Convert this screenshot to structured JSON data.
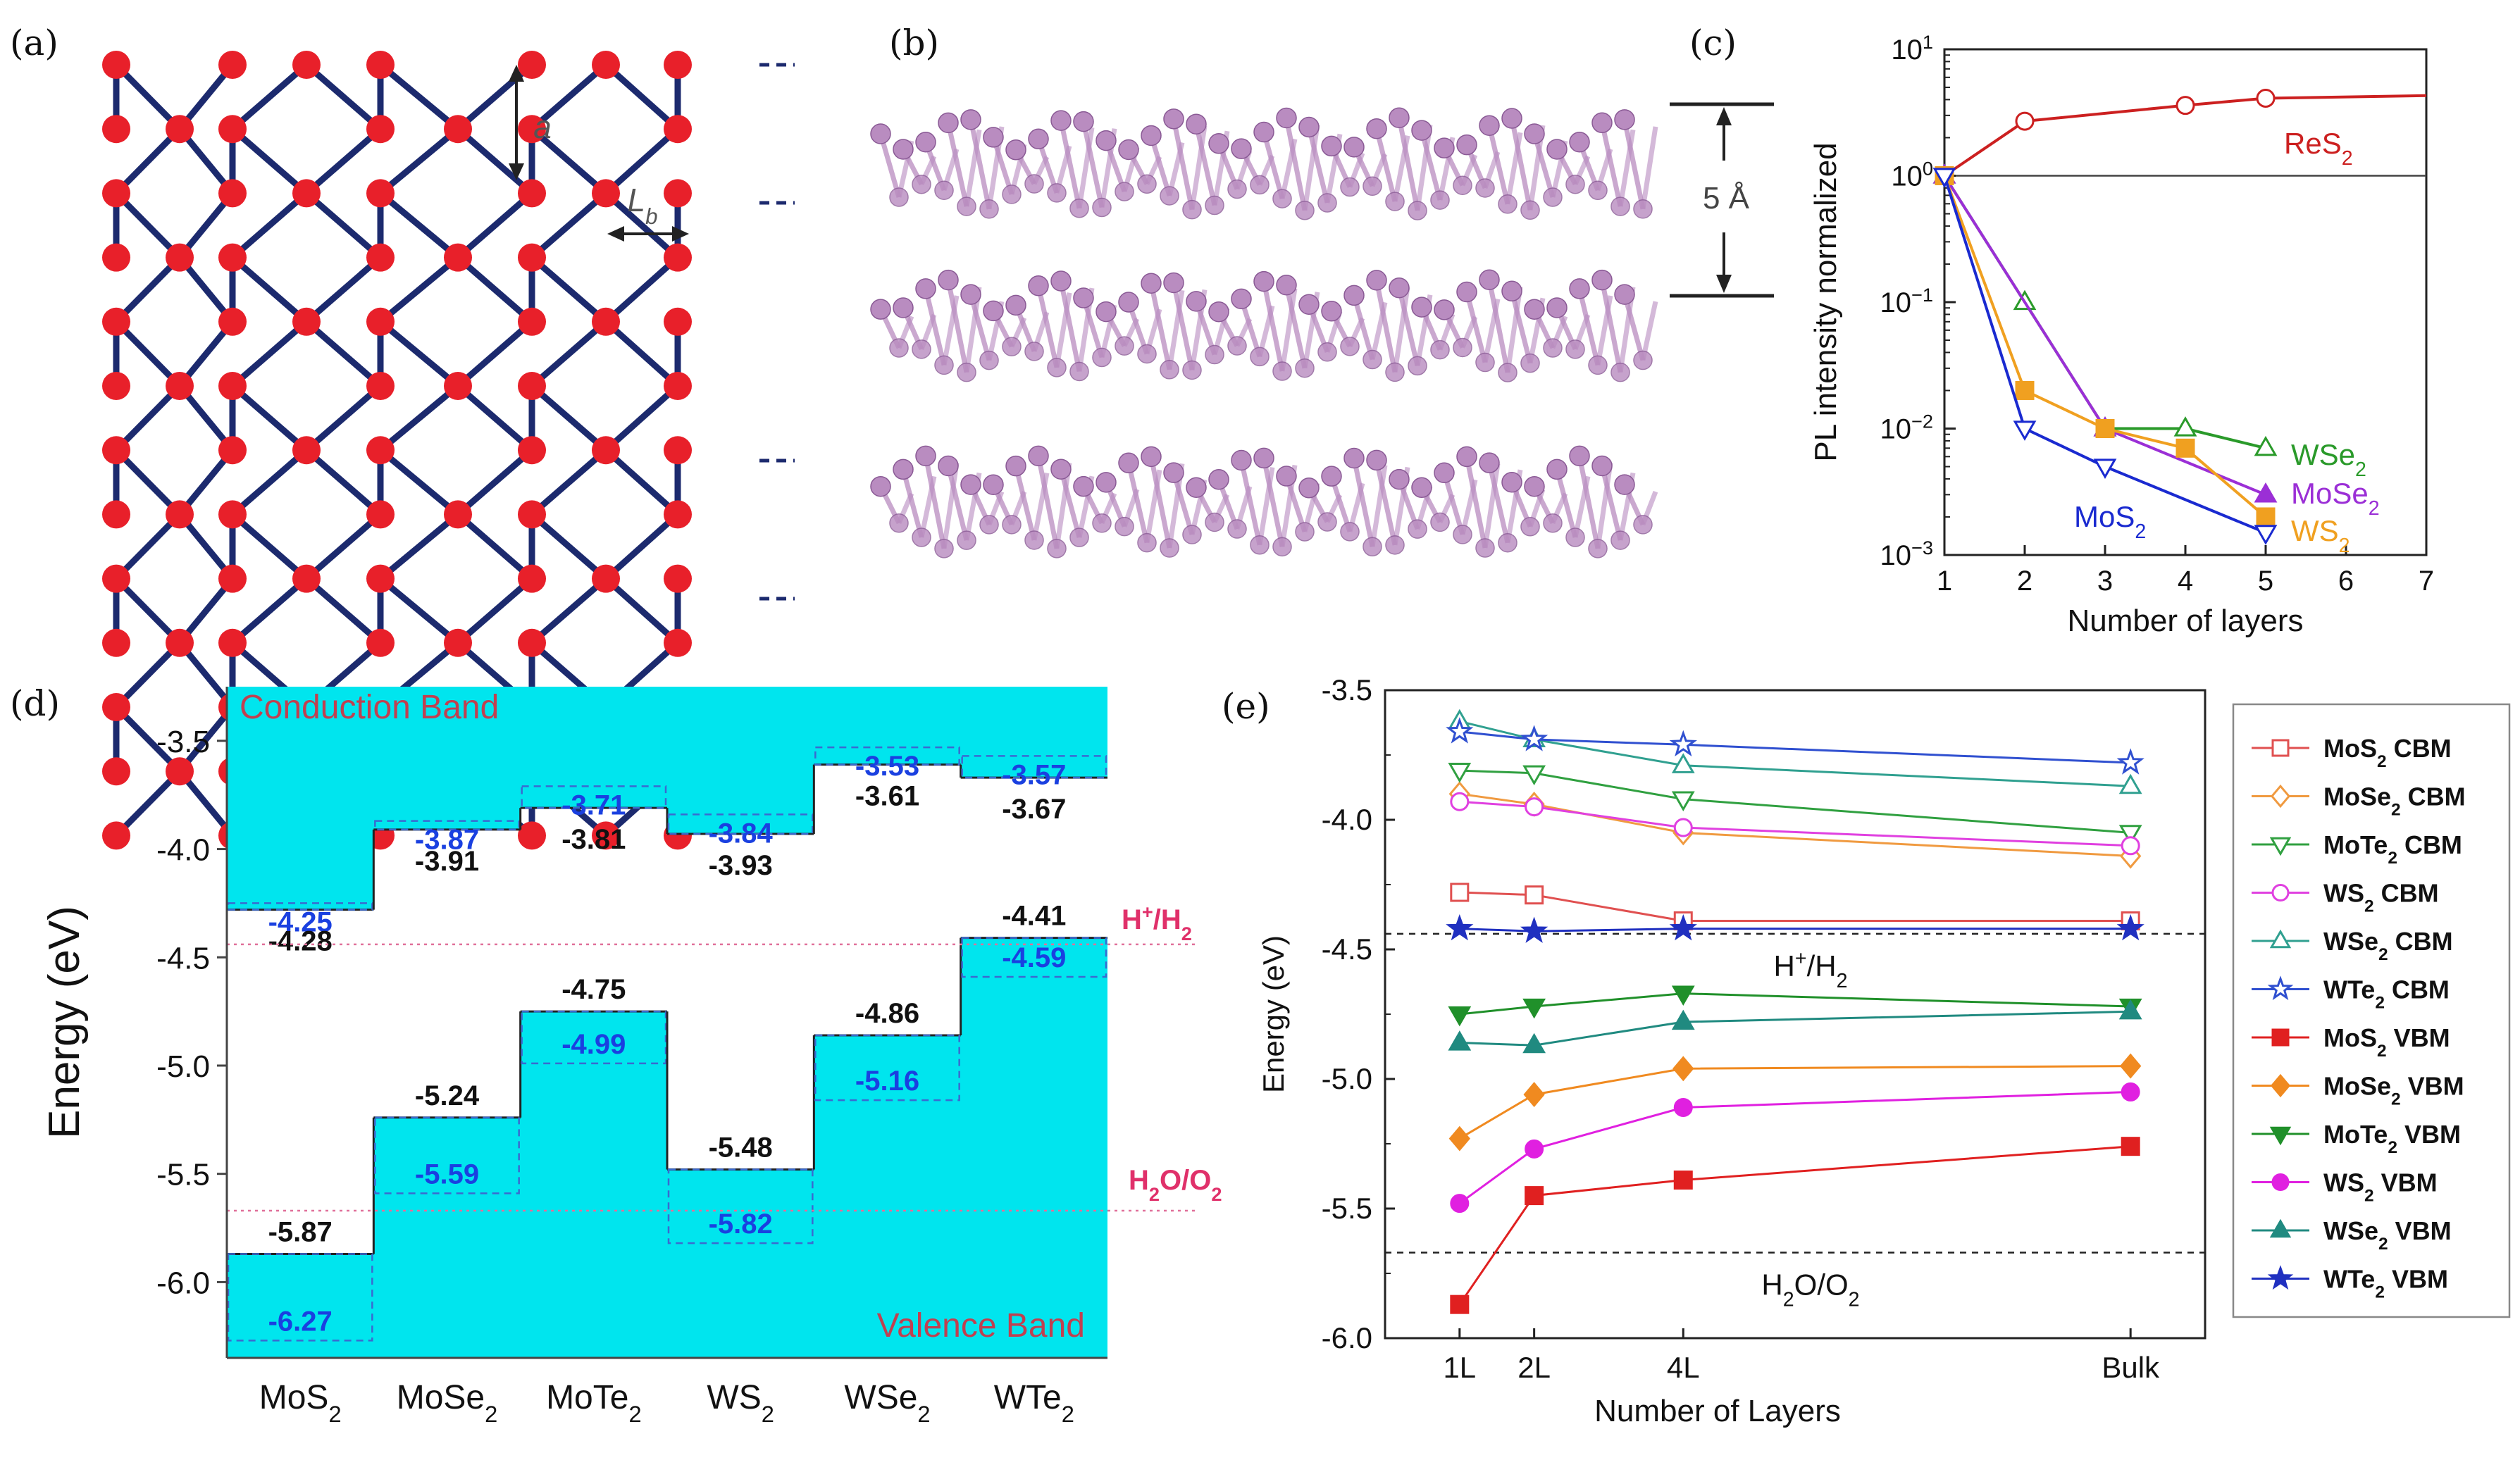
{
  "panels": {
    "a": {
      "label": "(a)",
      "dim_a": "a",
      "dim_lb": "L",
      "dim_lb_sub": "b"
    },
    "b": {
      "label": "(b)",
      "spacing": "5 Å"
    },
    "c": {
      "label": "(c)"
    },
    "d": {
      "label": "(d)"
    },
    "e": {
      "label": "(e)"
    }
  },
  "chart_data": [
    {
      "id": "c",
      "type": "line",
      "xlabel": "Number of layers",
      "ylabel": "PL intensity normalized",
      "xlim": [
        1,
        7
      ],
      "ylim_log10": [
        -3,
        1
      ],
      "yscale": "log",
      "xticks": [
        1,
        2,
        3,
        4,
        5,
        6,
        7
      ],
      "yticks": [
        {
          "exp": -3,
          "label": "10",
          "sup": "−3"
        },
        {
          "exp": -2,
          "label": "10",
          "sup": "−2"
        },
        {
          "exp": -1,
          "label": "10",
          "sup": "−1"
        },
        {
          "exp": 0,
          "label": "10",
          "sup": "0"
        },
        {
          "exp": 1,
          "label": "10",
          "sup": "1"
        }
      ],
      "reference_line_y": 1,
      "series": [
        {
          "name": "ReS",
          "sub": "2",
          "color": "#cc2020",
          "marker": "circle-open",
          "x": [
            1,
            2,
            4,
            5,
            7
          ],
          "y": [
            1.0,
            2.7,
            3.6,
            4.1,
            4.3
          ],
          "marker_count": 4
        },
        {
          "name": "WSe",
          "sub": "2",
          "color": "#2a9a2a",
          "marker": "triangle-open",
          "x": [
            1,
            2,
            3,
            4,
            5
          ],
          "y": [
            1.0,
            0.1,
            0.01,
            0.01,
            0.007
          ]
        },
        {
          "name": "MoSe",
          "sub": "2",
          "color": "#9b2fd6",
          "marker": "triangle-filled",
          "x": [
            1,
            3,
            5
          ],
          "y": [
            1.0,
            0.01,
            0.003
          ]
        },
        {
          "name": "WS",
          "sub": "2",
          "color": "#f0a020",
          "marker": "square-filled",
          "x": [
            1,
            2,
            3,
            4,
            5
          ],
          "y": [
            1.0,
            0.02,
            0.01,
            0.007,
            0.002
          ]
        },
        {
          "name": "MoS",
          "sub": "2",
          "color": "#1a2ad0",
          "marker": "triangle-down-open",
          "x": [
            1,
            2,
            3,
            5
          ],
          "y": [
            1.0,
            0.01,
            0.005,
            0.0015
          ]
        }
      ]
    },
    {
      "id": "d",
      "type": "bar",
      "ylabel": "Energy (eV)",
      "ylim": [
        -6.35,
        -3.25
      ],
      "yticks": [
        "-3.5",
        "-4.0",
        "-4.5",
        "-5.0",
        "-5.5",
        "-6.0"
      ],
      "ytick_values": [
        -3.5,
        -4.0,
        -4.5,
        -5.0,
        -5.5,
        -6.0
      ],
      "categories": [
        {
          "name": "MoS",
          "sub": "2"
        },
        {
          "name": "MoSe",
          "sub": "2"
        },
        {
          "name": "MoTe",
          "sub": "2"
        },
        {
          "name": "WS",
          "sub": "2"
        },
        {
          "name": "WSe",
          "sub": "2"
        },
        {
          "name": "WTe",
          "sub": "2"
        }
      ],
      "cbm_solid": [
        -4.28,
        -3.91,
        -3.81,
        -3.93,
        -3.61,
        -3.67
      ],
      "cbm_dashed": [
        -4.25,
        -3.87,
        -3.71,
        -3.84,
        -3.53,
        -3.57
      ],
      "vbm_solid": [
        -5.87,
        -5.24,
        -4.75,
        -5.48,
        -4.86,
        -4.41
      ],
      "vbm_dashed": [
        -6.27,
        -5.59,
        -4.99,
        -5.82,
        -5.16,
        -4.59
      ],
      "cbm_solid_labels": [
        "-4.28",
        "-3.91",
        "-3.81",
        "-3.93",
        "-3.61",
        "-3.67"
      ],
      "cbm_dashed_labels": [
        "-4.25",
        "-3.87",
        "-3.71",
        "-3.84",
        "-3.53",
        "-3.57"
      ],
      "vbm_solid_labels": [
        "-5.87",
        "-5.24",
        "-4.75",
        "-5.48",
        "-4.86",
        "-4.41"
      ],
      "vbm_dashed_labels": [
        "-6.27",
        "-5.59",
        "-4.99",
        "-5.82",
        "-5.16",
        "-4.59"
      ],
      "ref_h2": -4.44,
      "ref_o2": -5.67,
      "ref_h2_label": {
        "pre": "H",
        "sup": "+",
        "mid": "/H",
        "sub": "2"
      },
      "ref_o2_label": {
        "pre": "H",
        "sub1": "2",
        "mid": "O/O",
        "sub2": "2"
      },
      "conduction_label": "Conduction Band",
      "valence_label": "Valence Band",
      "fill_color": "#00e5ee"
    },
    {
      "id": "e",
      "type": "line",
      "xlabel": "Number of Layers",
      "ylabel": "Energy (eV)",
      "ylim": [
        -6.0,
        -3.5
      ],
      "yticks": [
        "-3.5",
        "-4.0",
        "-4.5",
        "-5.0",
        "-5.5",
        "-6.0"
      ],
      "ytick_values": [
        -3.5,
        -4.0,
        -4.5,
        -5.0,
        -5.5,
        -6.0
      ],
      "x_positions": [
        1,
        2,
        4,
        10
      ],
      "xlim": [
        0,
        11
      ],
      "xtick_labels": [
        "1L",
        "2L",
        "4L",
        "Bulk"
      ],
      "ref_h2": -4.44,
      "ref_o2": -5.67,
      "ref_h2_label": {
        "pre": "H",
        "sup": "+",
        "mid": "/H",
        "sub": "2"
      },
      "ref_o2_label": {
        "pre": "H",
        "sub1": "2",
        "mid": "O/O",
        "sub2": "2"
      },
      "series": [
        {
          "name": "MoS",
          "sub": "2",
          "kind": "CBM",
          "color": "#e05050",
          "marker": "square-open",
          "y": [
            -4.28,
            -4.29,
            -4.39,
            -4.39
          ]
        },
        {
          "name": "MoSe",
          "sub": "2",
          "kind": "CBM",
          "color": "#f09a40",
          "marker": "diamond-open",
          "y": [
            -3.9,
            -3.94,
            -4.05,
            -4.14
          ]
        },
        {
          "name": "MoTe",
          "sub": "2",
          "kind": "CBM",
          "color": "#30a040",
          "marker": "triangle-down-open",
          "y": [
            -3.81,
            -3.82,
            -3.92,
            -4.05
          ]
        },
        {
          "name": "WS",
          "sub": "2",
          "kind": "CBM",
          "color": "#e040e0",
          "marker": "circle-open",
          "y": [
            -3.93,
            -3.95,
            -4.03,
            -4.1
          ]
        },
        {
          "name": "WSe",
          "sub": "2",
          "kind": "CBM",
          "color": "#30a090",
          "marker": "triangle-open",
          "y": [
            -3.62,
            -3.69,
            -3.79,
            -3.87
          ]
        },
        {
          "name": "WTe",
          "sub": "2",
          "kind": "CBM",
          "color": "#3050d0",
          "marker": "star-open",
          "y": [
            -3.66,
            -3.69,
            -3.71,
            -3.78
          ]
        },
        {
          "name": "MoS",
          "sub": "2",
          "kind": "VBM",
          "color": "#e02020",
          "marker": "square-filled",
          "y": [
            -5.87,
            -5.45,
            -5.39,
            -5.26
          ]
        },
        {
          "name": "MoSe",
          "sub": "2",
          "kind": "VBM",
          "color": "#f08a20",
          "marker": "diamond-filled",
          "y": [
            -5.23,
            -5.06,
            -4.96,
            -4.95
          ]
        },
        {
          "name": "MoTe",
          "sub": "2",
          "kind": "VBM",
          "color": "#20902a",
          "marker": "triangle-down-filled",
          "y": [
            -4.75,
            -4.72,
            -4.67,
            -4.72
          ]
        },
        {
          "name": "WS",
          "sub": "2",
          "kind": "VBM",
          "color": "#e020e0",
          "marker": "circle-filled",
          "y": [
            -5.48,
            -5.27,
            -5.11,
            -5.05
          ]
        },
        {
          "name": "WSe",
          "sub": "2",
          "kind": "VBM",
          "color": "#208a80",
          "marker": "triangle-filled",
          "y": [
            -4.86,
            -4.87,
            -4.78,
            -4.74
          ]
        },
        {
          "name": "WTe",
          "sub": "2",
          "kind": "VBM",
          "color": "#2030c0",
          "marker": "star-filled",
          "y": [
            -4.42,
            -4.43,
            -4.42,
            -4.42
          ]
        }
      ]
    }
  ]
}
